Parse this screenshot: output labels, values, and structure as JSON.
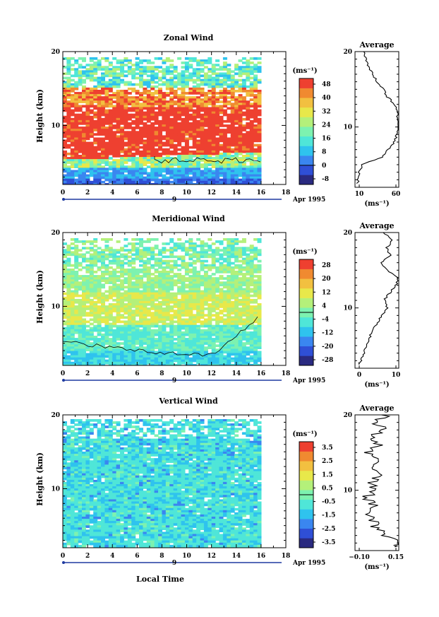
{
  "figure": {
    "xlabel": "Local Time",
    "date_label": "Apr 1995",
    "day_marker": "9"
  },
  "palette": [
    "#2a2a80",
    "#2f4fd6",
    "#3a86f0",
    "#2fc3ee",
    "#4fe6d8",
    "#7df2b0",
    "#b4f07a",
    "#e8e84a",
    "#f2c040",
    "#f08a30",
    "#ee4030"
  ],
  "chart_data": [
    {
      "type": "heatmap",
      "title": "Zonal Wind",
      "ylabel": "Height (km)",
      "xlim": [
        0,
        18
      ],
      "xticks": [
        "0",
        "2",
        "4",
        "6",
        "8",
        "10",
        "12",
        "14",
        "16",
        "18"
      ],
      "ylim": [
        2,
        20
      ],
      "yticks": [
        "10",
        "20"
      ],
      "data_time_range": [
        0,
        16
      ],
      "colorbar": {
        "unit": "(ms⁻¹)",
        "ticks": [
          "48",
          "40",
          "32",
          "24",
          "16",
          "8",
          "0",
          "-8"
        ],
        "min": -8,
        "max": 48
      },
      "profile": {
        "title": "Average",
        "unit": "(ms⁻¹)",
        "xticks": [
          "10",
          "60"
        ],
        "xlim": [
          10,
          60
        ],
        "yticks": [
          "10",
          "20"
        ],
        "heights": [
          2.5,
          3,
          4,
          5,
          6,
          7,
          8,
          9,
          10,
          11,
          12,
          13,
          14,
          15,
          16,
          17,
          18,
          19,
          20
        ],
        "values": [
          12,
          14,
          15,
          18,
          42,
          48,
          55,
          58,
          60,
          59,
          58,
          55,
          47,
          42,
          35,
          30,
          25,
          22,
          20
        ]
      }
    },
    {
      "type": "heatmap",
      "title": "Meridional Wind",
      "ylabel": "Height (km)",
      "xlim": [
        0,
        18
      ],
      "xticks": [
        "0",
        "2",
        "4",
        "6",
        "8",
        "10",
        "12",
        "14",
        "16",
        "18"
      ],
      "ylim": [
        2,
        20
      ],
      "yticks": [
        "10",
        "20"
      ],
      "data_time_range": [
        0,
        16
      ],
      "colorbar": {
        "unit": "(ms⁻¹)",
        "ticks": [
          "28",
          "20",
          "12",
          "4",
          "-4",
          "-12",
          "-20",
          "-28"
        ],
        "min": -28,
        "max": 28
      },
      "profile": {
        "title": "Average",
        "unit": "(ms⁻¹)",
        "xticks": [
          "0",
          "10"
        ],
        "xlim": [
          -3,
          12
        ],
        "yticks": [
          "10",
          "20"
        ],
        "heights": [
          2.5,
          3,
          4,
          5,
          6,
          7,
          8,
          9,
          10,
          11,
          12,
          13,
          14,
          15,
          16,
          17,
          18,
          19,
          20
        ],
        "values": [
          -2,
          -1,
          0,
          1,
          2,
          3,
          5,
          6,
          8,
          7,
          9,
          11,
          12,
          8,
          6,
          9,
          8,
          10,
          7
        ]
      }
    },
    {
      "type": "heatmap",
      "title": "Vertical Wind",
      "ylabel": "Height (km)",
      "xlim": [
        0,
        18
      ],
      "xticks": [
        "0",
        "2",
        "4",
        "6",
        "8",
        "10",
        "12",
        "14",
        "16",
        "18"
      ],
      "ylim": [
        2,
        20
      ],
      "yticks": [
        "10",
        "20"
      ],
      "data_time_range": [
        0,
        16
      ],
      "colorbar": {
        "unit": "(ms⁻¹)",
        "ticks": [
          "3.5",
          "2.5",
          "1.5",
          "0.5",
          "-0.5",
          "-1.5",
          "-2.5",
          "-3.5"
        ],
        "min": -4,
        "max": 4
      },
      "profile": {
        "title": "Average",
        "unit": "(ms⁻¹)",
        "xticks": [
          "−0.10",
          "0.15"
        ],
        "xlim": [
          -0.1,
          0.15
        ],
        "yticks": [
          "10",
          "20"
        ],
        "heights": [
          2.5,
          3,
          4,
          5,
          6,
          7,
          8,
          9,
          10,
          11,
          12,
          13,
          14,
          15,
          16,
          17,
          18,
          19,
          20
        ],
        "values": [
          0.12,
          0.15,
          0.08,
          0.02,
          0.0,
          -0.02,
          0.01,
          -0.04,
          0.02,
          -0.01,
          0.03,
          0.0,
          0.05,
          -0.02,
          0.04,
          0.0,
          0.06,
          0.02,
          0.08
        ]
      }
    }
  ]
}
